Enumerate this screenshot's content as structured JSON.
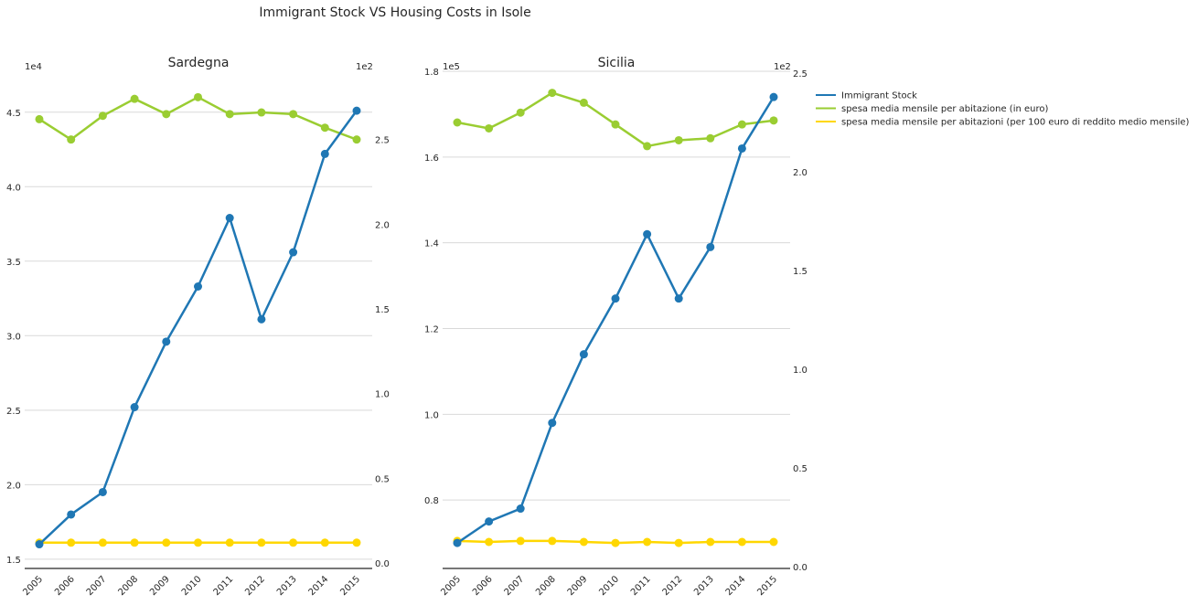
{
  "figure": {
    "title": "Immigrant Stock VS Housing Costs in Isole"
  },
  "legend": {
    "placement": "right",
    "entries": [
      {
        "label": "Immigrant Stock",
        "color": "#1f77b4"
      },
      {
        "label": "spesa media mensile per abitazione (in euro)",
        "color": "#9acd32"
      },
      {
        "label": "spesa media mensile per abitazioni (per 100 euro di reddito medio mensile)",
        "color": "#ffd700"
      }
    ]
  },
  "chart_data": [
    {
      "type": "line",
      "title": "Sardegna",
      "x": [
        "2005",
        "2006",
        "2007",
        "2008",
        "2009",
        "2010",
        "2011",
        "2012",
        "2013",
        "2014",
        "2015"
      ],
      "grid": true,
      "left_axis": {
        "multiplier": "1e4",
        "ylim": [
          1.45,
          4.75
        ],
        "ticks": [
          "1.5",
          "2.0",
          "2.5",
          "3.0",
          "3.5",
          "4.0",
          "4.5"
        ]
      },
      "right_axis": {
        "multiplier": "1e2",
        "ylim": [
          0,
          3.0
        ],
        "ticks": [
          "0.0",
          "0.5",
          "1.0",
          "1.5",
          "2.0",
          "2.5"
        ]
      },
      "series": [
        {
          "name": "Immigrant Stock",
          "axis": "left",
          "color": "#1f77b4",
          "values": [
            1.6,
            1.8,
            1.95,
            2.52,
            2.96,
            3.33,
            3.79,
            3.11,
            3.56,
            4.22,
            4.51
          ]
        },
        {
          "name": "spesa media mensile per abitazione (in euro)",
          "axis": "right",
          "color": "#9acd32",
          "values": [
            2.62,
            2.5,
            2.64,
            2.74,
            2.65,
            2.75,
            2.65,
            2.66,
            2.65,
            2.57,
            2.5
          ]
        },
        {
          "name": "spesa media mensile per abitazioni (per 100 euro di reddito medio mensile)",
          "axis": "right",
          "color": "#ffd700",
          "values": [
            0.12,
            0.12,
            0.12,
            0.12,
            0.12,
            0.12,
            0.12,
            0.12,
            0.12,
            0.12,
            0.12
          ]
        }
      ]
    },
    {
      "type": "line",
      "title": "Sicilia",
      "x": [
        "2005",
        "2006",
        "2007",
        "2008",
        "2009",
        "2010",
        "2011",
        "2012",
        "2013",
        "2014",
        "2015"
      ],
      "grid": true,
      "left_axis": {
        "multiplier": "1e5",
        "ylim": [
          0.6,
          1.8
        ],
        "ticks": [
          "0.8",
          "1.0",
          "1.2",
          "1.4",
          "1.6",
          "1.8"
        ]
      },
      "right_axis": {
        "multiplier": "1e2",
        "ylim": [
          0,
          2.5
        ],
        "ticks": [
          "0.0",
          "0.5",
          "1.0",
          "1.5",
          "2.0",
          "2.5"
        ]
      },
      "series": [
        {
          "name": "Immigrant Stock",
          "axis": "left",
          "color": "#1f77b4",
          "values": [
            0.7,
            0.75,
            0.78,
            0.98,
            1.14,
            1.27,
            1.42,
            1.27,
            1.39,
            1.62,
            1.74
          ]
        },
        {
          "name": "spesa media mensile per abitazione (in euro)",
          "axis": "right",
          "color": "#9acd32",
          "values": [
            2.25,
            2.22,
            2.3,
            2.4,
            2.35,
            2.24,
            2.13,
            2.16,
            2.17,
            2.24,
            2.26
          ]
        },
        {
          "name": "spesa media mensile per abitazioni (per 100 euro di reddito medio mensile)",
          "axis": "right",
          "color": "#ffd700",
          "values": [
            0.13,
            0.125,
            0.13,
            0.13,
            0.125,
            0.12,
            0.125,
            0.12,
            0.125,
            0.125,
            0.125
          ]
        }
      ]
    }
  ]
}
